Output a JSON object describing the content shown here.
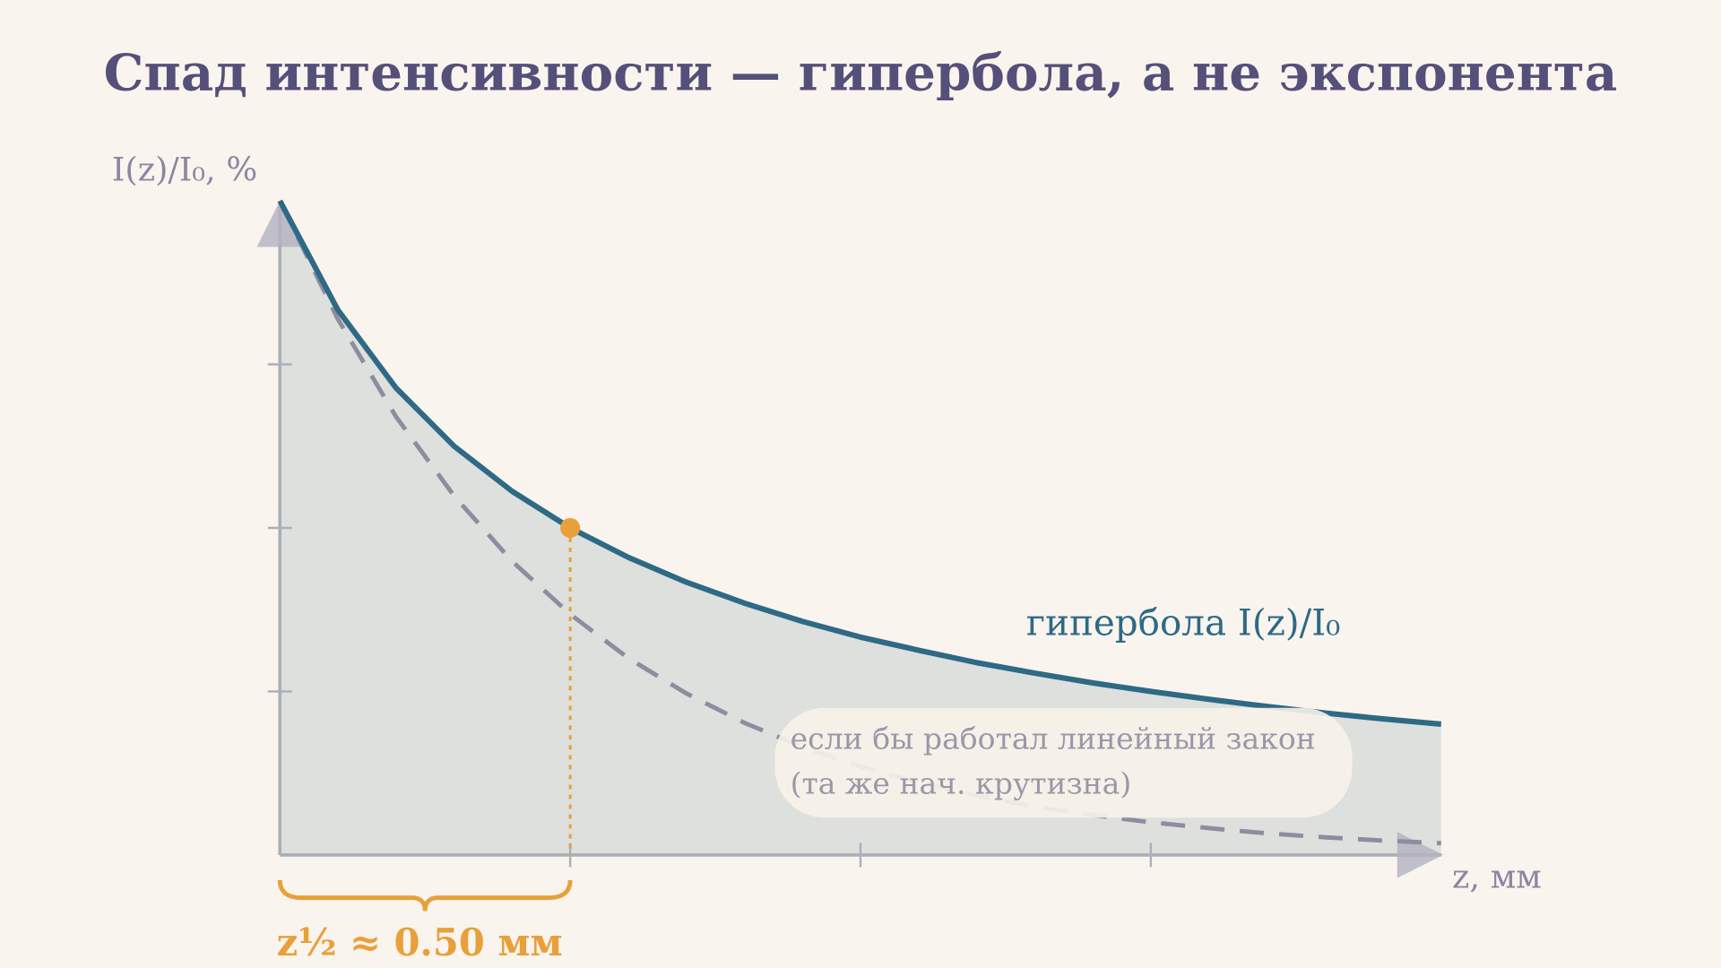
{
  "chart_data": {
    "type": "line",
    "title": "Спад интенсивности — гипербола, а не экспонента",
    "y_label": "I(z)/I₀, %",
    "x_label": "z, мм",
    "x": [
      0,
      0.1,
      0.2,
      0.3,
      0.4,
      0.5,
      0.6,
      0.7,
      0.8,
      0.9,
      1.0,
      1.1,
      1.2,
      1.3,
      1.4,
      1.5,
      1.6,
      1.7,
      1.8,
      1.9,
      2.0
    ],
    "series": [
      {
        "name": "гипербола I(z)/I₀",
        "color": "#2e6a85",
        "fill": "#dde0dd",
        "dashed": false,
        "values": [
          100,
          83.3,
          71.4,
          62.5,
          55.6,
          50,
          45.5,
          41.7,
          38.5,
          35.7,
          33.3,
          31.3,
          29.4,
          27.8,
          26.3,
          25,
          23.8,
          22.7,
          21.7,
          20.8,
          20
        ]
      },
      {
        "color": "#8e8ca0",
        "dashed": true,
        "values": [
          100,
          81.9,
          67.0,
          54.9,
          44.9,
          36.8,
          30.1,
          24.7,
          20.2,
          16.5,
          13.5,
          11.1,
          9.1,
          7.4,
          6.1,
          5.0,
          4.1,
          3.3,
          2.7,
          2.2,
          1.8
        ]
      }
    ],
    "annotation": [
      "если бы работал линейный закон",
      "(та же нач. крутизна)"
    ],
    "highlight": {
      "x": 0.5,
      "y": 50,
      "label": "z½  ≈  0.50 мм",
      "color": "#e8a03a"
    },
    "xlim": [
      0,
      2
    ],
    "ylim": [
      0,
      100
    ],
    "xticks": [
      0.5,
      1,
      1.5
    ],
    "yticks": [
      25,
      50,
      75
    ]
  }
}
